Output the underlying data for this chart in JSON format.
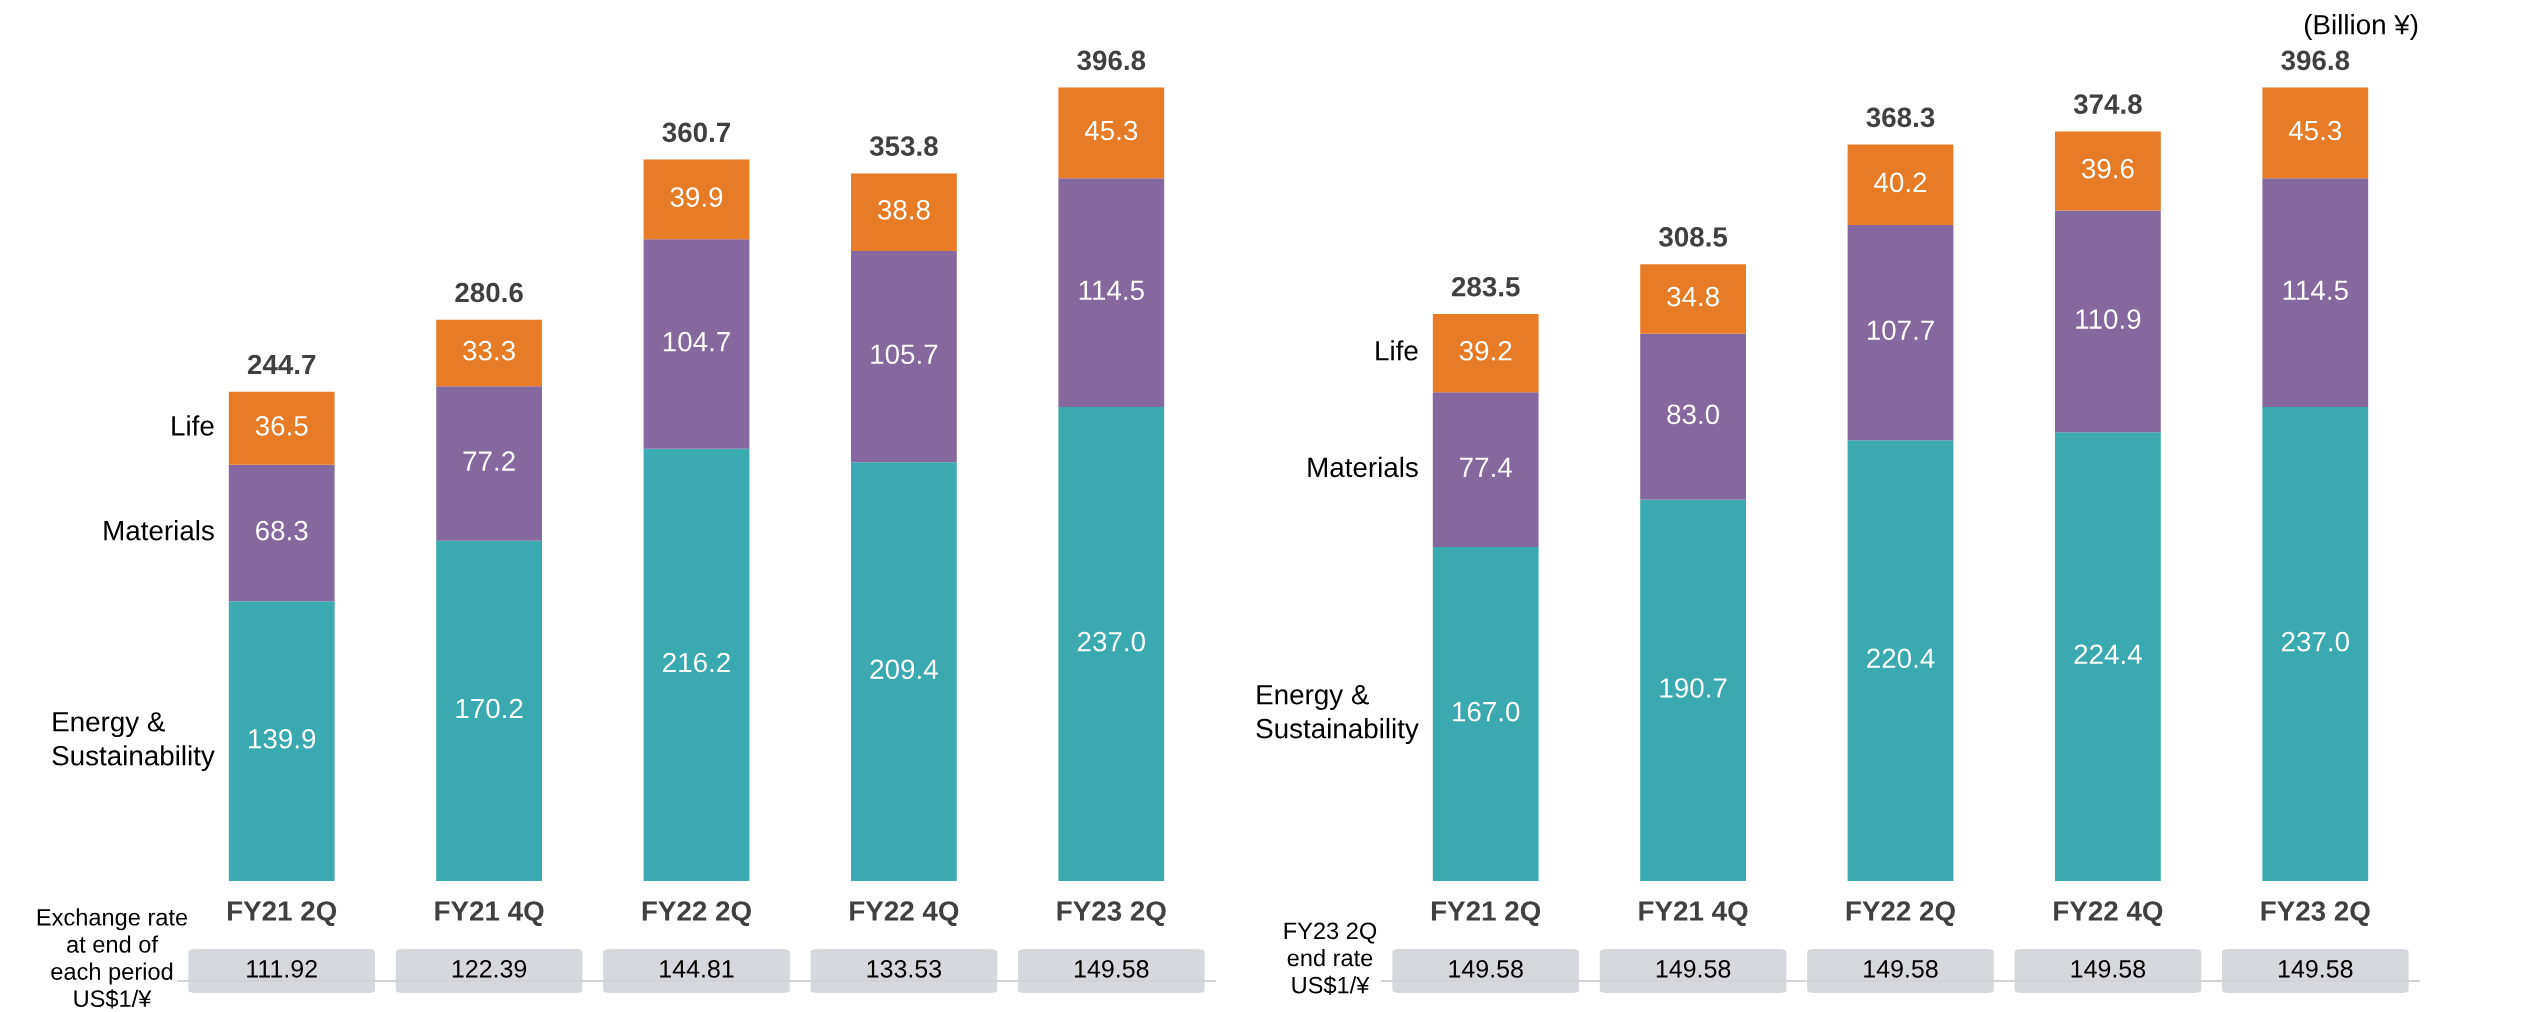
{
  "chart_data": [
    {
      "type": "bar",
      "stacked": true,
      "legend": false,
      "grid": false,
      "categories": [
        "FY21 2Q",
        "FY21 4Q",
        "FY22 2Q",
        "FY22 4Q",
        "FY23 2Q"
      ],
      "series": [
        {
          "name": "Energy &\nSustainability",
          "color": "#3ba9b1",
          "values": [
            139.9,
            170.2,
            216.2,
            209.4,
            237.0
          ],
          "value_labels": [
            "139.9",
            "170.2",
            "216.2",
            "209.4",
            "237.0"
          ]
        },
        {
          "name": "Materials",
          "color": "#8568a0",
          "values": [
            68.3,
            77.2,
            104.7,
            105.7,
            114.5
          ],
          "value_labels": [
            "68.3",
            "77.2",
            "104.7",
            "105.7",
            "114.5"
          ]
        },
        {
          "name": "Life",
          "color": "#e87b26",
          "values": [
            36.5,
            33.3,
            39.9,
            38.8,
            45.3
          ],
          "value_labels": [
            "36.5",
            "33.3",
            "39.9",
            "38.8",
            "45.3"
          ]
        }
      ],
      "totals": [
        "244.7",
        "280.6",
        "360.7",
        "353.8",
        "396.8"
      ],
      "annotations": [
        "Exchange rate\nat end of\neach period\nUS$1/¥",
        "111.92",
        "122.39",
        "144.81",
        "133.53",
        "149.58"
      ]
    },
    {
      "type": "bar",
      "stacked": true,
      "legend": false,
      "grid": false,
      "title": "(Billion ¥)",
      "categories": [
        "FY21 2Q",
        "FY21 4Q",
        "FY22 2Q",
        "FY22 4Q",
        "FY23 2Q"
      ],
      "series": [
        {
          "name": "Energy &\nSustainability",
          "color": "#3ba9b1",
          "values": [
            167.0,
            190.7,
            220.4,
            224.4,
            237.0
          ],
          "value_labels": [
            "167.0",
            "190.7",
            "220.4",
            "224.4",
            "237.0"
          ]
        },
        {
          "name": "Materials",
          "color": "#8568a0",
          "values": [
            77.4,
            83.0,
            107.7,
            110.9,
            114.5
          ],
          "value_labels": [
            "77.4",
            "83.0",
            "107.7",
            "110.9",
            "114.5"
          ]
        },
        {
          "name": "Life",
          "color": "#e87b26",
          "values": [
            39.2,
            34.8,
            40.2,
            39.6,
            45.3
          ],
          "value_labels": [
            "39.2",
            "34.8",
            "40.2",
            "39.6",
            "45.3"
          ]
        }
      ],
      "totals": [
        "283.5",
        "308.5",
        "368.3",
        "374.8",
        "396.8"
      ],
      "annotations": [
        "FY23 2Q\nend rate\nUS$1/¥",
        "149.58",
        "149.58",
        "149.58",
        "149.58",
        "149.58"
      ]
    }
  ]
}
